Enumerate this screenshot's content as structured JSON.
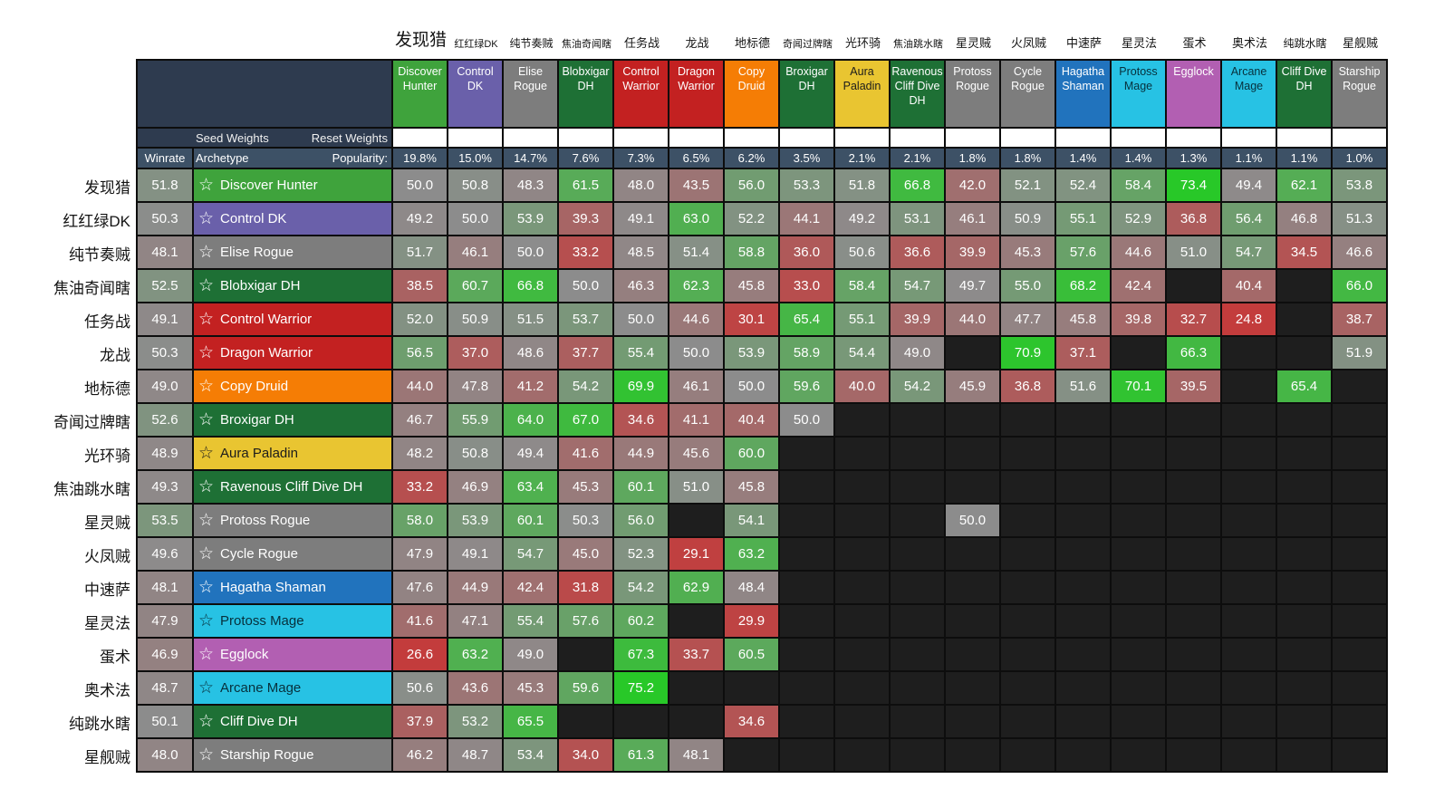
{
  "controls": {
    "seed_weights": "Seed Weights",
    "reset_weights": "Reset Weights",
    "winrate": "Winrate",
    "archetype": "Archetype",
    "popularity": "Popularity:"
  },
  "colors": {
    "corner": "#2e3b4f",
    "bar": "#3d5166",
    "grid": "#0d0d0d",
    "blank": "#1e1e1e",
    "cell_mid": "#8c8c8c",
    "cell_green": "#28c828",
    "cell_red": "#c33c3c"
  },
  "archetypes": [
    {
      "cn": "发现猎",
      "en": "Discover Hunter",
      "color": "#3fa33c",
      "fg": "#ffffff",
      "winrate": "51.8",
      "popularity": "19.8%"
    },
    {
      "cn": "红红绿DK",
      "en": "Control DK",
      "color": "#6a60aa",
      "fg": "#ffffff",
      "winrate": "50.3",
      "popularity": "15.0%"
    },
    {
      "cn": "纯节奏贼",
      "en": "Elise Rogue",
      "color": "#7d7d7d",
      "fg": "#ffffff",
      "winrate": "48.1",
      "popularity": "14.7%"
    },
    {
      "cn": "焦油奇闻瞎",
      "en": "Blobxigar DH",
      "color": "#1e7035",
      "fg": "#ffffff",
      "winrate": "52.5",
      "popularity": "7.6%"
    },
    {
      "cn": "任务战",
      "en": "Control Warrior",
      "color": "#c32121",
      "fg": "#ffffff",
      "winrate": "49.1",
      "popularity": "7.3%"
    },
    {
      "cn": "龙战",
      "en": "Dragon Warrior",
      "color": "#c32121",
      "fg": "#ffffff",
      "winrate": "50.3",
      "popularity": "6.5%"
    },
    {
      "cn": "地标德",
      "en": "Copy Druid",
      "color": "#f57d05",
      "fg": "#ffffff",
      "winrate": "49.0",
      "popularity": "6.2%"
    },
    {
      "cn": "奇闻过牌瞎",
      "en": "Broxigar DH",
      "color": "#1e7035",
      "fg": "#ffffff",
      "winrate": "52.6",
      "popularity": "3.5%"
    },
    {
      "cn": "光环骑",
      "en": "Aura Paladin",
      "color": "#e9c531",
      "fg": "#1c1c1c",
      "winrate": "48.9",
      "popularity": "2.1%"
    },
    {
      "cn": "焦油跳水瞎",
      "en": "Ravenous Cliff Dive DH",
      "color": "#1e7035",
      "fg": "#ffffff",
      "winrate": "49.3",
      "popularity": "2.1%"
    },
    {
      "cn": "星灵贼",
      "en": "Protoss Rogue",
      "color": "#7d7d7d",
      "fg": "#ffffff",
      "winrate": "53.5",
      "popularity": "1.8%"
    },
    {
      "cn": "火凤贼",
      "en": "Cycle Rogue",
      "color": "#7d7d7d",
      "fg": "#ffffff",
      "winrate": "49.6",
      "popularity": "1.8%"
    },
    {
      "cn": "中速萨",
      "en": "Hagatha Shaman",
      "color": "#2173bd",
      "fg": "#ffffff",
      "winrate": "48.1",
      "popularity": "1.4%"
    },
    {
      "cn": "星灵法",
      "en": "Protoss Mage",
      "color": "#27c2e4",
      "fg": "#07303c",
      "winrate": "47.9",
      "popularity": "1.4%"
    },
    {
      "cn": "蛋术",
      "en": "Egglock",
      "color": "#b25fb2",
      "fg": "#ffffff",
      "winrate": "46.9",
      "popularity": "1.3%"
    },
    {
      "cn": "奥术法",
      "en": "Arcane Mage",
      "color": "#27c2e4",
      "fg": "#07303c",
      "winrate": "48.7",
      "popularity": "1.1%"
    },
    {
      "cn": "纯跳水瞎",
      "en": "Cliff Dive DH",
      "color": "#1e7035",
      "fg": "#ffffff",
      "winrate": "50.1",
      "popularity": "1.1%"
    },
    {
      "cn": "星舰贼",
      "en": "Starship Rogue",
      "color": "#7d7d7d",
      "fg": "#ffffff",
      "winrate": "48.0",
      "popularity": "1.0%"
    }
  ],
  "chart_data": {
    "type": "heatmap",
    "title": "Archetype matchup winrate matrix",
    "x_labels": [
      "Discover Hunter",
      "Control DK",
      "Elise Rogue",
      "Blobxigar DH",
      "Control Warrior",
      "Dragon Warrior",
      "Copy Druid",
      "Broxigar DH",
      "Aura Paladin",
      "Ravenous Cliff Dive DH",
      "Protoss Rogue",
      "Cycle Rogue",
      "Hagatha Shaman",
      "Protoss Mage",
      "Egglock",
      "Arcane Mage",
      "Cliff Dive DH",
      "Starship Rogue"
    ],
    "y_labels": [
      "Discover Hunter",
      "Control DK",
      "Elise Rogue",
      "Blobxigar DH",
      "Control Warrior",
      "Dragon Warrior",
      "Copy Druid",
      "Broxigar DH",
      "Aura Paladin",
      "Ravenous Cliff Dive DH",
      "Protoss Rogue",
      "Cycle Rogue",
      "Hagatha Shaman",
      "Protoss Mage",
      "Egglock",
      "Arcane Mage",
      "Cliff Dive DH",
      "Starship Rogue"
    ],
    "popularity": [
      19.8,
      15.0,
      14.7,
      7.6,
      7.3,
      6.5,
      6.2,
      3.5,
      2.1,
      2.1,
      1.8,
      1.8,
      1.4,
      1.4,
      1.3,
      1.1,
      1.1,
      1.0
    ],
    "overall_winrate": [
      51.8,
      50.3,
      48.1,
      52.5,
      49.1,
      50.3,
      49.0,
      52.6,
      48.9,
      49.3,
      53.5,
      49.6,
      48.1,
      47.9,
      46.9,
      48.7,
      50.1,
      48.0
    ],
    "value_range": [
      0,
      100
    ],
    "values": [
      [
        50.0,
        50.8,
        48.3,
        61.5,
        48.0,
        43.5,
        56.0,
        53.3,
        51.8,
        66.8,
        42.0,
        52.1,
        52.4,
        58.4,
        73.4,
        49.4,
        62.1,
        53.8
      ],
      [
        49.2,
        50.0,
        53.9,
        39.3,
        49.1,
        63.0,
        52.2,
        44.1,
        49.2,
        53.1,
        46.1,
        50.9,
        55.1,
        52.9,
        36.8,
        56.4,
        46.8,
        51.3
      ],
      [
        51.7,
        46.1,
        50.0,
        33.2,
        48.5,
        51.4,
        58.8,
        36.0,
        50.6,
        36.6,
        39.9,
        45.3,
        57.6,
        44.6,
        51.0,
        54.7,
        34.5,
        46.6
      ],
      [
        38.5,
        60.7,
        66.8,
        50.0,
        46.3,
        62.3,
        45.8,
        33.0,
        58.4,
        54.7,
        49.7,
        55.0,
        68.2,
        42.4,
        null,
        40.4,
        null,
        66.0
      ],
      [
        52.0,
        50.9,
        51.5,
        53.7,
        50.0,
        44.6,
        30.1,
        65.4,
        55.1,
        39.9,
        44.0,
        47.7,
        45.8,
        39.8,
        32.7,
        24.8,
        null,
        38.7
      ],
      [
        56.5,
        37.0,
        48.6,
        37.7,
        55.4,
        50.0,
        53.9,
        58.9,
        54.4,
        49.0,
        null,
        70.9,
        37.1,
        null,
        66.3,
        null,
        null,
        51.9
      ],
      [
        44.0,
        47.8,
        41.2,
        54.2,
        69.9,
        46.1,
        50.0,
        59.6,
        40.0,
        54.2,
        45.9,
        36.8,
        51.6,
        70.1,
        39.5,
        null,
        65.4,
        null
      ],
      [
        46.7,
        55.9,
        64.0,
        67.0,
        34.6,
        41.1,
        40.4,
        50.0,
        null,
        null,
        null,
        null,
        null,
        null,
        null,
        null,
        null,
        null
      ],
      [
        48.2,
        50.8,
        49.4,
        41.6,
        44.9,
        45.6,
        60.0,
        null,
        null,
        null,
        null,
        null,
        null,
        null,
        null,
        null,
        null,
        null
      ],
      [
        33.2,
        46.9,
        63.4,
        45.3,
        60.1,
        51.0,
        45.8,
        null,
        null,
        null,
        null,
        null,
        null,
        null,
        null,
        null,
        null,
        null
      ],
      [
        58.0,
        53.9,
        60.1,
        50.3,
        56.0,
        null,
        54.1,
        null,
        null,
        null,
        50.0,
        null,
        null,
        null,
        null,
        null,
        null,
        null
      ],
      [
        47.9,
        49.1,
        54.7,
        45.0,
        52.3,
        29.1,
        63.2,
        null,
        null,
        null,
        null,
        null,
        null,
        null,
        null,
        null,
        null,
        null
      ],
      [
        47.6,
        44.9,
        42.4,
        31.8,
        54.2,
        62.9,
        48.4,
        null,
        null,
        null,
        null,
        null,
        null,
        null,
        null,
        null,
        null,
        null
      ],
      [
        41.6,
        47.1,
        55.4,
        57.6,
        60.2,
        null,
        29.9,
        null,
        null,
        null,
        null,
        null,
        null,
        null,
        null,
        null,
        null,
        null
      ],
      [
        26.6,
        63.2,
        49.0,
        null,
        67.3,
        33.7,
        60.5,
        null,
        null,
        null,
        null,
        null,
        null,
        null,
        null,
        null,
        null,
        null
      ],
      [
        50.6,
        43.6,
        45.3,
        59.6,
        75.2,
        null,
        null,
        null,
        null,
        null,
        null,
        null,
        null,
        null,
        null,
        null,
        null,
        null
      ],
      [
        37.9,
        53.2,
        65.5,
        null,
        null,
        null,
        34.6,
        null,
        null,
        null,
        null,
        null,
        null,
        null,
        null,
        null,
        null,
        null
      ],
      [
        46.2,
        48.7,
        53.4,
        34.0,
        61.3,
        48.1,
        null,
        null,
        null,
        null,
        null,
        null,
        null,
        null,
        null,
        null,
        null,
        null
      ]
    ]
  }
}
